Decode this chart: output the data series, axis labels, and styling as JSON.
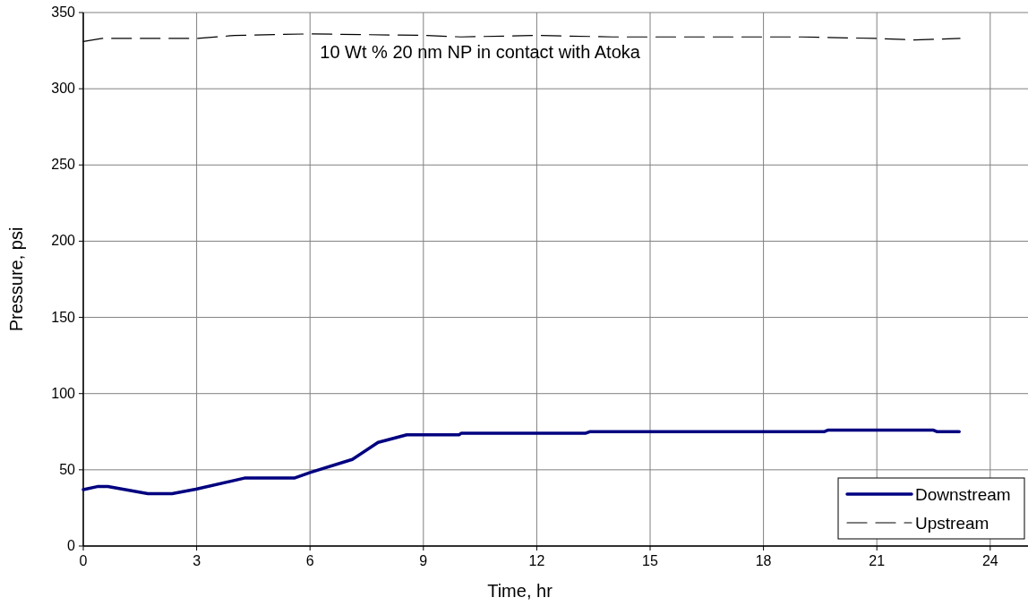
{
  "chart_data": {
    "type": "line",
    "xlabel": "Time, hr",
    "ylabel": "Pressure, psi",
    "annotations": [
      "10 Wt % 20 nm NP in contact with Atoka"
    ],
    "xlim": [
      0,
      25
    ],
    "xticks": [
      0,
      3,
      6,
      9,
      12,
      15,
      18,
      21,
      24
    ],
    "ylim": [
      0,
      350
    ],
    "yticks": [
      0,
      50,
      100,
      150,
      200,
      250,
      300,
      350
    ],
    "grid": true,
    "legend": "bottom right",
    "series": [
      {
        "name": "Downstream",
        "color": "#000080",
        "line_style": "solid",
        "x": [
          0,
          0.37,
          0.65,
          1.71,
          2.35,
          2.98,
          4.29,
          5.6,
          6.02,
          7.12,
          7.8,
          8.56,
          9.95,
          10.0,
          13.3,
          13.4,
          19.6,
          19.7,
          22.5,
          22.6,
          23.18
        ],
        "values": [
          37,
          39,
          39,
          34.4,
          34.4,
          37.3,
          44.7,
          44.7,
          48.4,
          56.8,
          68,
          73,
          73,
          74,
          74,
          75,
          75,
          76,
          76,
          75,
          75
        ]
      },
      {
        "name": "Upstream",
        "color": "#000000",
        "line_style": "dashed",
        "x": [
          0,
          0.5,
          3,
          4,
          6,
          9,
          10,
          12,
          14,
          19,
          21,
          22,
          23.2
        ],
        "values": [
          331,
          333,
          333,
          335,
          336,
          335,
          334,
          335,
          334,
          334,
          333,
          332,
          333
        ]
      }
    ]
  }
}
